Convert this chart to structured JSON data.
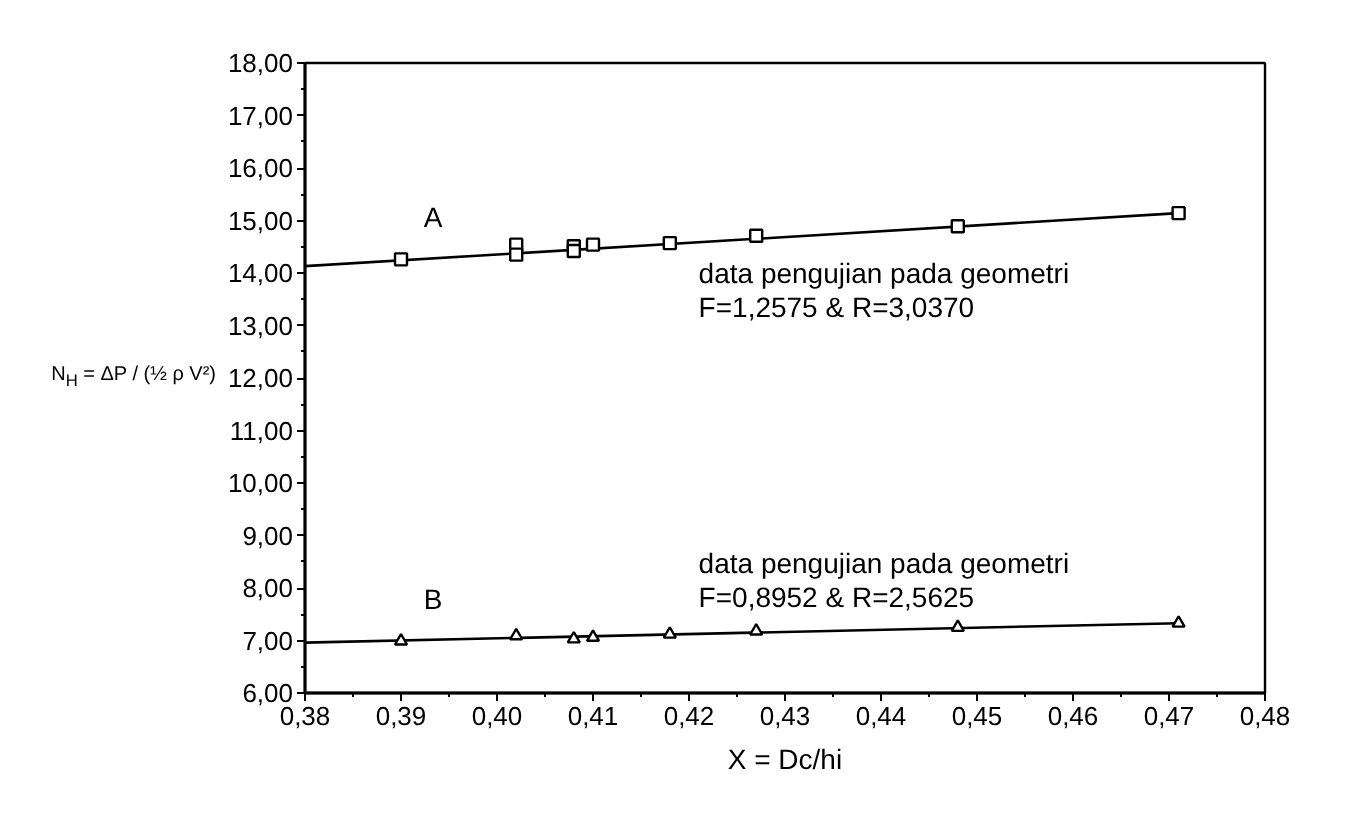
{
  "chart_data": {
    "type": "scatter",
    "xlabel": "X = Dc/hi",
    "ylabel": "N$_{H}$ = ΔP / (½ ρ V²)",
    "xlim": [
      0.38,
      0.48
    ],
    "xticks": [
      {
        "value": 0.38,
        "label": "0,38"
      },
      {
        "value": 0.385,
        "label": null
      },
      {
        "value": 0.39,
        "label": "0,39"
      },
      {
        "value": 0.395,
        "label": null
      },
      {
        "value": 0.4,
        "label": "0,40"
      },
      {
        "value": 0.405,
        "label": null
      },
      {
        "value": 0.41,
        "label": "0,41"
      },
      {
        "value": 0.415,
        "label": null
      },
      {
        "value": 0.42,
        "label": "0,42"
      },
      {
        "value": 0.425,
        "label": null
      },
      {
        "value": 0.43,
        "label": "0,43"
      },
      {
        "value": 0.435,
        "label": null
      },
      {
        "value": 0.44,
        "label": "0,44"
      },
      {
        "value": 0.445,
        "label": null
      },
      {
        "value": 0.45,
        "label": "0,45"
      },
      {
        "value": 0.455,
        "label": null
      },
      {
        "value": 0.46,
        "label": "0,46"
      },
      {
        "value": 0.465,
        "label": null
      },
      {
        "value": 0.47,
        "label": "0,47"
      },
      {
        "value": 0.475,
        "label": null
      },
      {
        "value": 0.48,
        "label": "0,48"
      }
    ],
    "ylim": [
      6,
      18
    ],
    "yticks": [
      {
        "value": 6,
        "label": "6,00"
      },
      {
        "value": 6.5,
        "label": null
      },
      {
        "value": 7,
        "label": "7,00"
      },
      {
        "value": 7.5,
        "label": null
      },
      {
        "value": 8,
        "label": "8,00"
      },
      {
        "value": 8.5,
        "label": null
      },
      {
        "value": 9,
        "label": "9,00"
      },
      {
        "value": 9.5,
        "label": null
      },
      {
        "value": 10,
        "label": "10,00"
      },
      {
        "value": 10.5,
        "label": null
      },
      {
        "value": 11,
        "label": "11,00"
      },
      {
        "value": 11.5,
        "label": null
      },
      {
        "value": 12,
        "label": "12,00"
      },
      {
        "value": 12.5,
        "label": null
      },
      {
        "value": 13,
        "label": "13,00"
      },
      {
        "value": 13.5,
        "label": null
      },
      {
        "value": 14,
        "label": "14,00"
      },
      {
        "value": 14.5,
        "label": null
      },
      {
        "value": 15,
        "label": "15,00"
      },
      {
        "value": 15.5,
        "label": null
      },
      {
        "value": 16,
        "label": "16,00"
      },
      {
        "value": 16.5,
        "label": null
      },
      {
        "value": 17,
        "label": "17,00"
      },
      {
        "value": 17.5,
        "label": null
      },
      {
        "value": 18,
        "label": "18,00"
      }
    ],
    "grid": false,
    "series": [
      {
        "name": "A",
        "marker": "square",
        "color": "#000000",
        "x": [
          0.39,
          0.402,
          0.402,
          0.408,
          0.408,
          0.41,
          0.418,
          0.427,
          0.448,
          0.471
        ],
        "values": [
          14.26,
          14.54,
          14.35,
          14.51,
          14.42,
          14.54,
          14.57,
          14.71,
          14.89,
          15.14
        ]
      },
      {
        "type": "line",
        "color": "#000000",
        "x": [
          0.38,
          0.471
        ],
        "values": [
          14.13,
          15.14
        ]
      },
      {
        "name": "B",
        "marker": "triangle",
        "color": "#000000",
        "x": [
          0.39,
          0.402,
          0.408,
          0.41,
          0.418,
          0.427,
          0.448,
          0.471
        ],
        "values": [
          6.99,
          7.09,
          7.03,
          7.06,
          7.12,
          7.18,
          7.25,
          7.33
        ]
      },
      {
        "type": "line",
        "color": "#000000",
        "x": [
          0.38,
          0.471
        ],
        "values": [
          6.96,
          7.33
        ]
      }
    ],
    "annotations": [
      "data pengujian pada geometri\nF=1,2575 & R=3,0370",
      "data pengujian pada geometri\nF=0,8952 & R=2,5625"
    ]
  }
}
